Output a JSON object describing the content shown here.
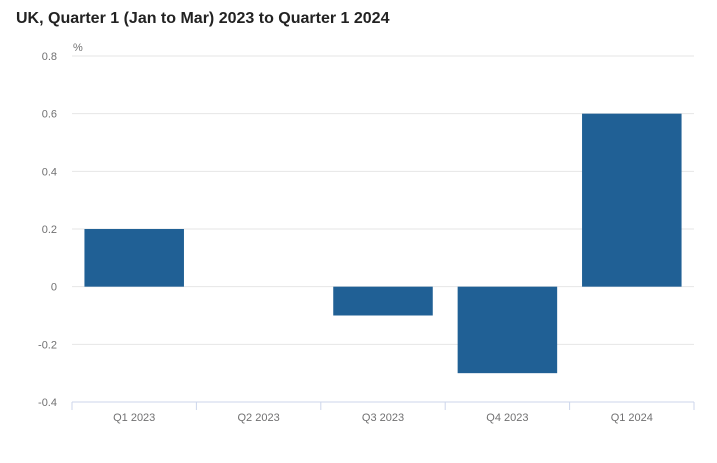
{
  "chart_data": {
    "type": "bar",
    "title": "UK, Quarter 1 (Jan to Mar) 2023 to Quarter 1 2024",
    "unit_label": "%",
    "categories": [
      "Q1 2023",
      "Q2 2023",
      "Q3 2023",
      "Q4 2023",
      "Q1 2024"
    ],
    "values": [
      0.2,
      0.0,
      -0.1,
      -0.3,
      0.6
    ],
    "ylim": [
      -0.4,
      0.8
    ],
    "yticks": [
      0.8,
      0.6,
      0.4,
      0.2,
      0,
      -0.2,
      -0.4
    ],
    "ytick_labels": [
      "0.8",
      "0.6",
      "0.4",
      "0.2",
      "0",
      "-0.2",
      "-0.4"
    ],
    "grid": true,
    "bar_color": "#206095"
  }
}
